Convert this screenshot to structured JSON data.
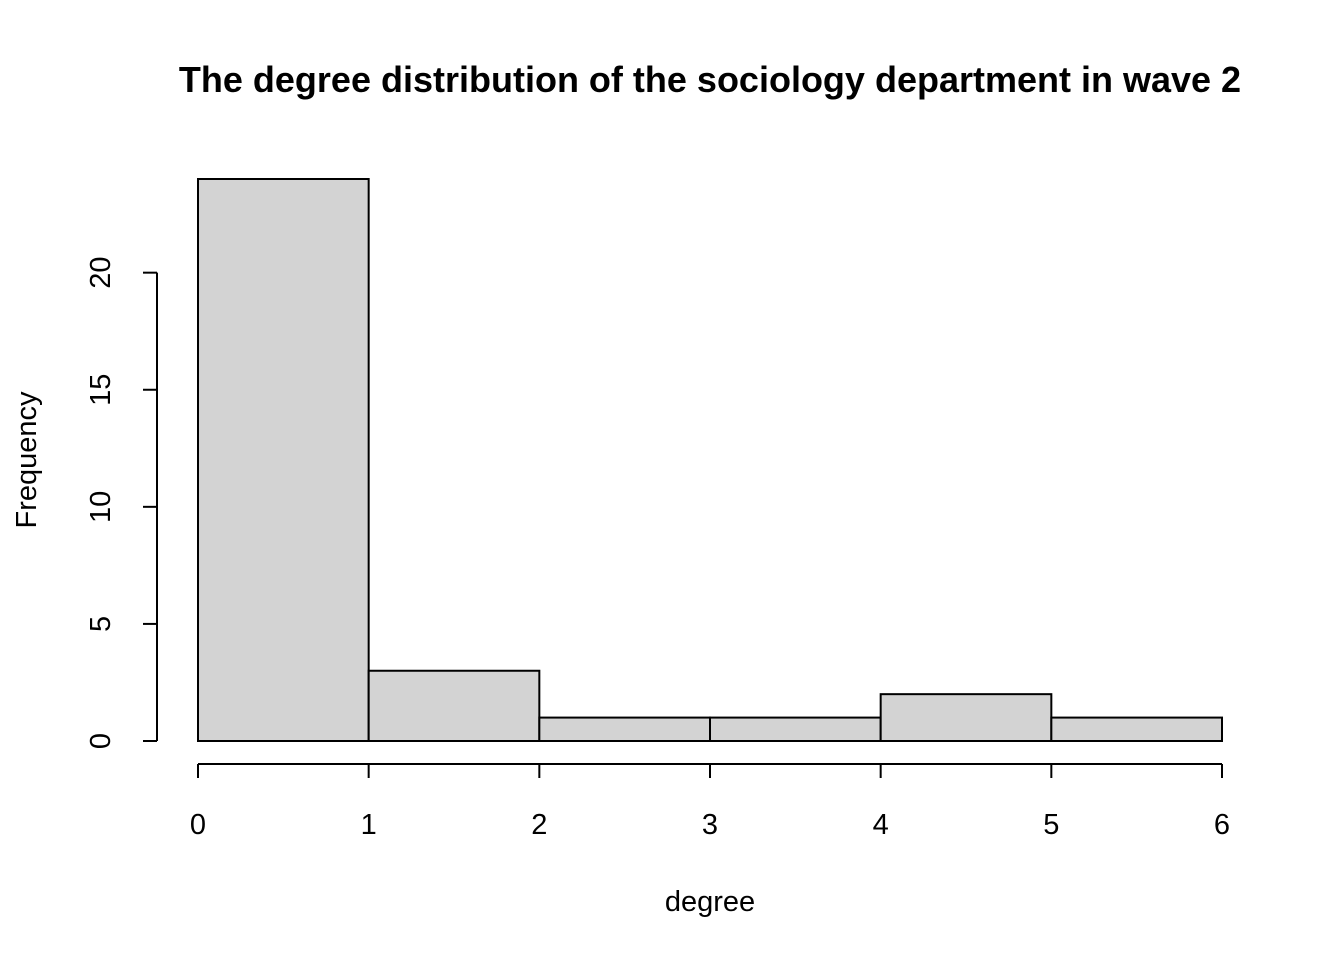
{
  "chart_data": {
    "type": "bar",
    "title": "The degree distribution of the sociology department in wave 2",
    "xlabel": "degree",
    "ylabel": "Frequency",
    "bins": [
      {
        "from": 0,
        "to": 1,
        "count": 24
      },
      {
        "from": 1,
        "to": 2,
        "count": 3
      },
      {
        "from": 2,
        "to": 3,
        "count": 1
      },
      {
        "from": 3,
        "to": 4,
        "count": 1
      },
      {
        "from": 4,
        "to": 5,
        "count": 2
      },
      {
        "from": 5,
        "to": 6,
        "count": 1
      }
    ],
    "x_ticks": [
      "0",
      "1",
      "2",
      "3",
      "4",
      "5",
      "6"
    ],
    "y_ticks": [
      "0",
      "5",
      "10",
      "15",
      "20"
    ],
    "xlim": [
      0,
      6
    ],
    "ylim": [
      0,
      24
    ],
    "grid": false,
    "bar_color": "#d3d3d3",
    "edge_color": "#000000"
  }
}
